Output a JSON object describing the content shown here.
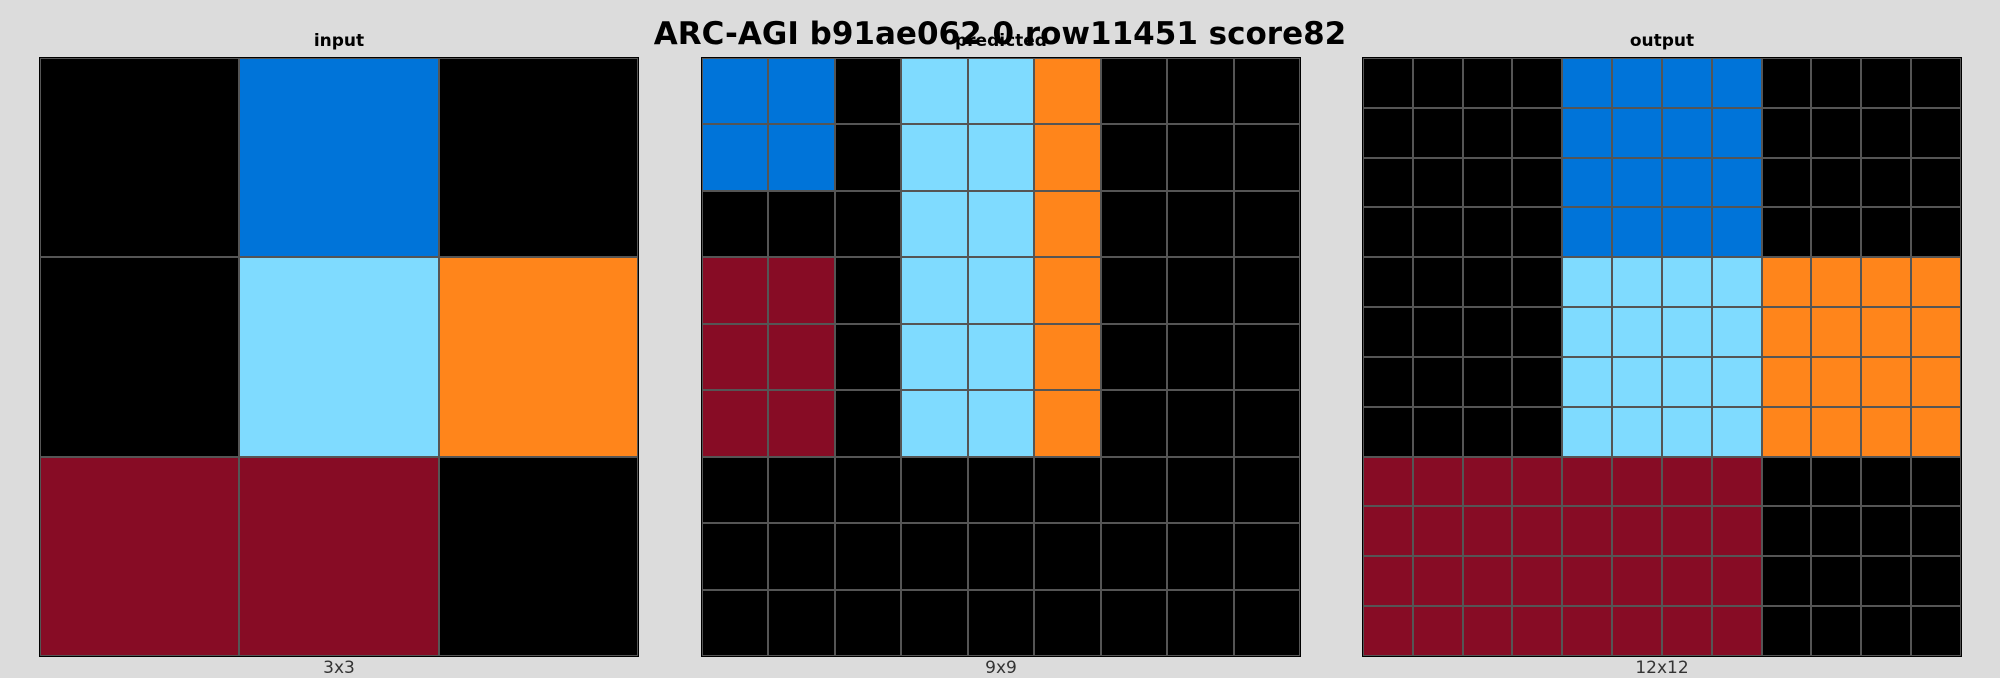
{
  "title": "ARC-AGI b91ae062 0 row11451 score82",
  "palette": {
    "0": "#000000",
    "1": "#0074D9",
    "8": "#7FDBFF",
    "7": "#FF851B",
    "9": "#870C25"
  },
  "panels": [
    {
      "title": "input",
      "caption": "3x3",
      "grid": [
        [
          0,
          1,
          0
        ],
        [
          0,
          8,
          7
        ],
        [
          9,
          9,
          0
        ]
      ]
    },
    {
      "title": "predicted",
      "caption": "9x9",
      "grid": [
        [
          1,
          1,
          0,
          8,
          8,
          7,
          0,
          0,
          0
        ],
        [
          1,
          1,
          0,
          8,
          8,
          7,
          0,
          0,
          0
        ],
        [
          0,
          0,
          0,
          8,
          8,
          7,
          0,
          0,
          0
        ],
        [
          9,
          9,
          0,
          8,
          8,
          7,
          0,
          0,
          0
        ],
        [
          9,
          9,
          0,
          8,
          8,
          7,
          0,
          0,
          0
        ],
        [
          9,
          9,
          0,
          8,
          8,
          7,
          0,
          0,
          0
        ],
        [
          0,
          0,
          0,
          0,
          0,
          0,
          0,
          0,
          0
        ],
        [
          0,
          0,
          0,
          0,
          0,
          0,
          0,
          0,
          0
        ],
        [
          0,
          0,
          0,
          0,
          0,
          0,
          0,
          0,
          0
        ]
      ]
    },
    {
      "title": "output",
      "caption": "12x12",
      "grid": [
        [
          0,
          0,
          0,
          0,
          1,
          1,
          1,
          1,
          0,
          0,
          0,
          0
        ],
        [
          0,
          0,
          0,
          0,
          1,
          1,
          1,
          1,
          0,
          0,
          0,
          0
        ],
        [
          0,
          0,
          0,
          0,
          1,
          1,
          1,
          1,
          0,
          0,
          0,
          0
        ],
        [
          0,
          0,
          0,
          0,
          1,
          1,
          1,
          1,
          0,
          0,
          0,
          0
        ],
        [
          0,
          0,
          0,
          0,
          8,
          8,
          8,
          8,
          7,
          7,
          7,
          7
        ],
        [
          0,
          0,
          0,
          0,
          8,
          8,
          8,
          8,
          7,
          7,
          7,
          7
        ],
        [
          0,
          0,
          0,
          0,
          8,
          8,
          8,
          8,
          7,
          7,
          7,
          7
        ],
        [
          0,
          0,
          0,
          0,
          8,
          8,
          8,
          8,
          7,
          7,
          7,
          7
        ],
        [
          9,
          9,
          9,
          9,
          9,
          9,
          9,
          9,
          0,
          0,
          0,
          0
        ],
        [
          9,
          9,
          9,
          9,
          9,
          9,
          9,
          9,
          0,
          0,
          0,
          0
        ],
        [
          9,
          9,
          9,
          9,
          9,
          9,
          9,
          9,
          0,
          0,
          0,
          0
        ],
        [
          9,
          9,
          9,
          9,
          9,
          9,
          9,
          9,
          0,
          0,
          0,
          0
        ]
      ]
    }
  ]
}
